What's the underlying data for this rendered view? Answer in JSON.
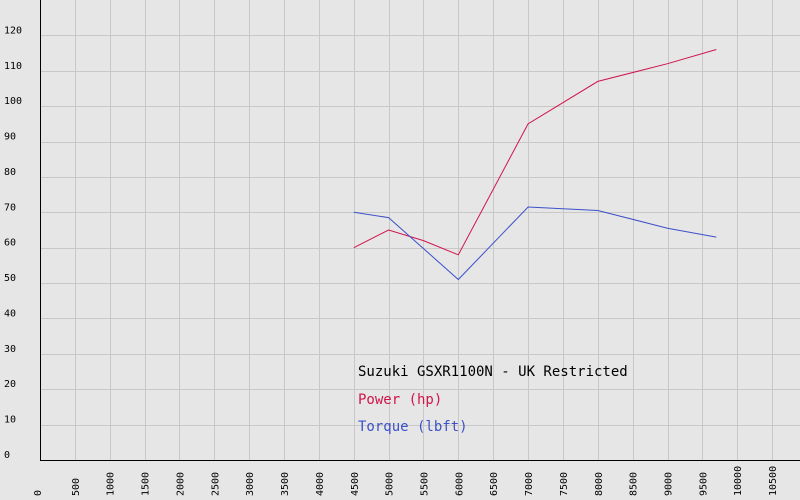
{
  "chart_data": {
    "type": "line",
    "title": "Suzuki GSXR1100N - UK Restricted",
    "xlabel": "",
    "ylabel": "",
    "xlim": [
      0,
      10900
    ],
    "ylim": [
      0,
      130
    ],
    "grid": true,
    "x_ticks": [
      "0",
      "500",
      "1000",
      "1500",
      "2000",
      "2500",
      "3000",
      "3500",
      "4000",
      "4500",
      "5000",
      "5500",
      "6000",
      "6500",
      "7000",
      "7500",
      "8000",
      "8500",
      "9000",
      "9500",
      "10000",
      "10500"
    ],
    "y_ticks": [
      "0",
      "10",
      "20",
      "30",
      "40",
      "50",
      "60",
      "70",
      "80",
      "90",
      "100",
      "110",
      "120"
    ],
    "legend_position": "lower-middle",
    "series": [
      {
        "name": "Power (hp)",
        "color": "#d0144c",
        "points": [
          [
            4500,
            60
          ],
          [
            5000,
            65
          ],
          [
            5500,
            62
          ],
          [
            6000,
            58
          ],
          [
            7000,
            95
          ],
          [
            8000,
            107
          ],
          [
            9000,
            112
          ],
          [
            9700,
            116
          ]
        ]
      },
      {
        "name": "Torque (lbft)",
        "color": "#3c50c8",
        "points": [
          [
            4500,
            70
          ],
          [
            5000,
            68.5
          ],
          [
            6000,
            51
          ],
          [
            7000,
            71.5
          ],
          [
            8000,
            70.5
          ],
          [
            9000,
            65.5
          ],
          [
            9700,
            63
          ]
        ]
      }
    ]
  }
}
